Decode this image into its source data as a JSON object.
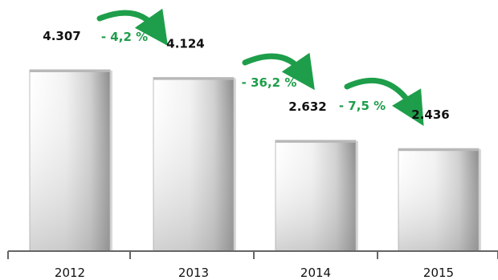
{
  "chart_data": {
    "type": "bar",
    "categories": [
      "2012",
      "2013",
      "2014",
      "2015"
    ],
    "values": [
      4307,
      4124,
      2632,
      2436
    ],
    "value_labels": [
      "4.307",
      "4.124",
      "2.632",
      "2.436"
    ],
    "changes": [
      "- 4,2  %",
      "- 36,2  %",
      "- 7,5  %"
    ],
    "ylim": [
      0,
      4800
    ],
    "grid": false,
    "title": "",
    "xlabel": "",
    "ylabel": ""
  },
  "colors": {
    "accent_green": "#1e9e4a",
    "axis": "#666666",
    "bar_light": "#f4f4f4",
    "bar_dark": "#8a8a8a"
  }
}
